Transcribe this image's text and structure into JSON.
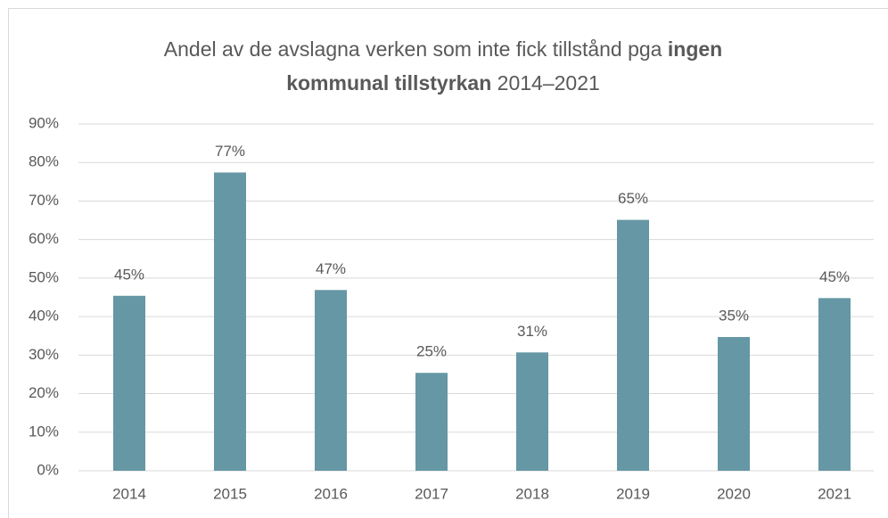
{
  "chart_data": {
    "type": "bar",
    "title_lines": [
      [
        {
          "text": "Andel av de avslagna verken som inte fick tillstånd pga ",
          "bold": false
        },
        {
          "text": "ingen",
          "bold": true
        }
      ],
      [
        {
          "text": "kommunal tillstyrkan",
          "bold": true
        },
        {
          "text": " 2014–2021",
          "bold": false
        }
      ]
    ],
    "categories": [
      "2014",
      "2015",
      "2016",
      "2017",
      "2018",
      "2019",
      "2020",
      "2021"
    ],
    "values": [
      45.4,
      77.4,
      46.9,
      25.4,
      30.7,
      65.1,
      34.7,
      44.8
    ],
    "value_labels": [
      "45%",
      "77%",
      "47%",
      "25%",
      "31%",
      "65%",
      "35%",
      "45%"
    ],
    "color": "#6597a4",
    "ylim": [
      0,
      90
    ],
    "yticks": [
      {
        "value": 0,
        "label": "0%"
      },
      {
        "value": 10,
        "label": "10%"
      },
      {
        "value": 20,
        "label": "20%"
      },
      {
        "value": 30,
        "label": "30%"
      },
      {
        "value": 40,
        "label": "40%"
      },
      {
        "value": 50,
        "label": "50%"
      },
      {
        "value": 60,
        "label": "60%"
      },
      {
        "value": 70,
        "label": "70%"
      },
      {
        "value": 80,
        "label": "80%"
      },
      {
        "value": 90,
        "label": "90%"
      }
    ],
    "grid": true
  }
}
